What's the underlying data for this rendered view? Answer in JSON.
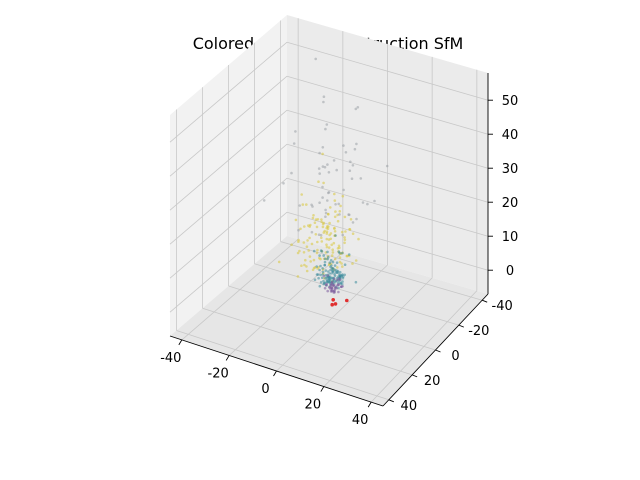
{
  "chart_data": {
    "type": "scatter",
    "projection": "3d",
    "title": "Colored Scene reconstruction SfM",
    "xlabel": "",
    "ylabel": "",
    "zlabel": "",
    "grid": true,
    "legend": "none",
    "xlim": [
      -45,
      45
    ],
    "ylim": [
      -45,
      45
    ],
    "zlim": [
      -7,
      58
    ],
    "xticks": [
      "-40",
      "-20",
      "0",
      "20",
      "40"
    ],
    "yticks": [
      "-40",
      "-20",
      "0",
      "20",
      "40"
    ],
    "zticks": [
      "0",
      "10",
      "20",
      "30",
      "40",
      "50"
    ],
    "clusters": [
      {
        "name": "yellow points",
        "color": "#d8c63a",
        "center": [
          -4,
          -2,
          6
        ],
        "spread": [
          6,
          6,
          10
        ],
        "count": 140
      },
      {
        "name": "teal points",
        "color": "#3a8a9a",
        "center": [
          1,
          2,
          4
        ],
        "spread": [
          3,
          3,
          4
        ],
        "count": 120
      },
      {
        "name": "purple points",
        "color": "#7a5a9a",
        "center": [
          0,
          0,
          1
        ],
        "spread": [
          2,
          2,
          2
        ],
        "count": 40
      },
      {
        "name": "grey points",
        "color": "#9aa0a6",
        "center": [
          0,
          4,
          20
        ],
        "spread": [
          8,
          8,
          16
        ],
        "count": 60
      }
    ],
    "camera_points": [
      {
        "x": 0,
        "y": -1,
        "z": -2,
        "color": "#e03030"
      },
      {
        "x": 1,
        "y": -1,
        "z": -3,
        "color": "#e03030"
      },
      {
        "x": -1,
        "y": -2,
        "z": -4,
        "color": "#e03030"
      },
      {
        "x": 0,
        "y": -12,
        "z": -6,
        "color": "#e03030"
      }
    ]
  },
  "colors": {
    "pane_left": "#f2f2f2",
    "pane_right": "#ebebeb",
    "pane_floor": "#e6e6e6",
    "grid": "#c8c8c8",
    "axis": "#000000"
  }
}
